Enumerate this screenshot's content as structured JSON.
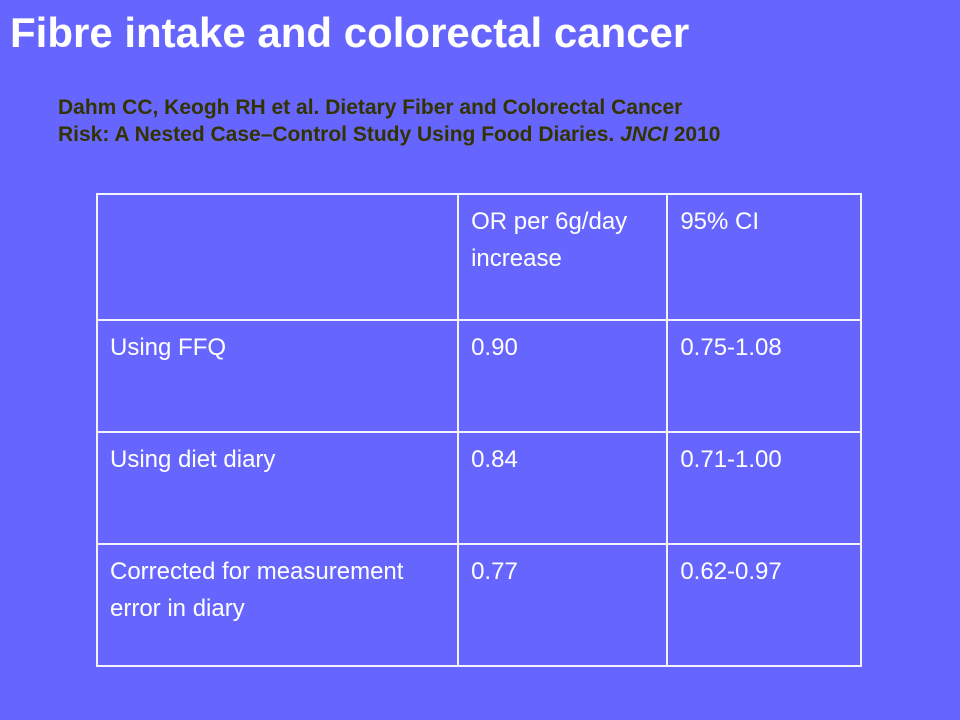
{
  "title": "Fibre intake and colorectal cancer",
  "citation": {
    "line1": "Dahm CC, Keogh RH et al. Dietary Fiber and Colorectal Cancer",
    "line2_main": "Risk: A Nested Case–Control Study Using Food Diaries. ",
    "journal": "JNCI",
    "year": " 2010"
  },
  "table": {
    "headers": [
      "",
      "OR per 6g/day increase",
      "95% CI"
    ],
    "rows": [
      {
        "label": "Using FFQ",
        "or": "0.90",
        "ci": "0.75-1.08"
      },
      {
        "label": "Using diet diary",
        "or": "0.84",
        "ci": "0.71-1.00"
      },
      {
        "label": "Corrected for measurement error in diary",
        "or": "0.77",
        "ci": "0.62-0.97"
      }
    ]
  },
  "colors": {
    "background": "#6666ff",
    "title_text": "#ffffff",
    "citation_text": "#333300",
    "table_text": "#ffffff",
    "table_border": "#f4f4ff"
  }
}
